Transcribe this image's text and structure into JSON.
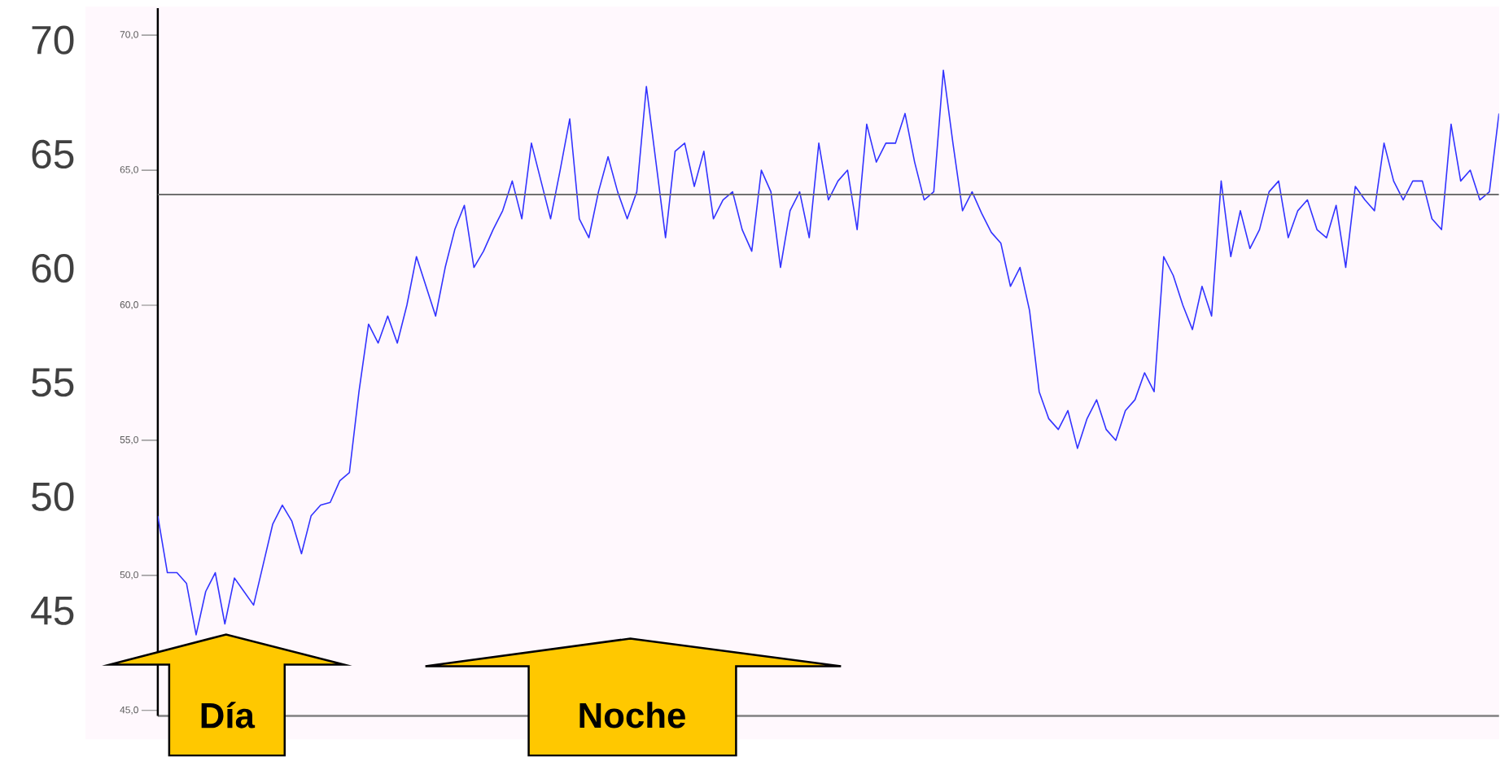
{
  "chart_data": {
    "type": "line",
    "categories": [
      null,
      null,
      null,
      null,
      null,
      null,
      null,
      null,
      null,
      null,
      null,
      null,
      null,
      null,
      null,
      null,
      null,
      null,
      null,
      null,
      null,
      null,
      null,
      null,
      null,
      null,
      null,
      null,
      null,
      null,
      null,
      null,
      null,
      null,
      null,
      null,
      null,
      null,
      null,
      null,
      null,
      null,
      null,
      null,
      null,
      null,
      null,
      null,
      null,
      null,
      null,
      null,
      null,
      null,
      null,
      null,
      null,
      null,
      null,
      null,
      null,
      null,
      null,
      null,
      null,
      null,
      null,
      null,
      null,
      null,
      null,
      null,
      null,
      null,
      null,
      null,
      null,
      null,
      null,
      null,
      null,
      null,
      null,
      null,
      null,
      null,
      null,
      null,
      null,
      null,
      null,
      null,
      null,
      null,
      null,
      null,
      null,
      null,
      null,
      null,
      null,
      null,
      null,
      null,
      null,
      null,
      null,
      null,
      null,
      null,
      null,
      null,
      null,
      null,
      null,
      null,
      null,
      null,
      null,
      null,
      null,
      null,
      null,
      null,
      null,
      null,
      null,
      null,
      null,
      null,
      null,
      null,
      null,
      null,
      null,
      null,
      null,
      null,
      null,
      null,
      null
    ],
    "series": [
      {
        "color": "#3333ff",
        "values": [
          52.2,
          50.1,
          50.1,
          49.7,
          47.8,
          49.4,
          50.1,
          48.2,
          49.9,
          49.4,
          48.9,
          50.4,
          51.9,
          52.6,
          52.0,
          50.8,
          52.2,
          52.6,
          52.7,
          53.5,
          53.8,
          56.8,
          59.3,
          58.6,
          59.6,
          58.6,
          60.0,
          61.8,
          60.7,
          59.6,
          61.4,
          62.8,
          63.7,
          61.4,
          62.0,
          62.8,
          63.5,
          64.6,
          63.2,
          66.0,
          64.6,
          63.2,
          65.0,
          66.9,
          63.2,
          62.5,
          64.2,
          65.5,
          64.2,
          63.2,
          64.2,
          68.1,
          65.3,
          62.5,
          65.7,
          66.0,
          64.4,
          65.7,
          63.2,
          63.9,
          64.2,
          62.8,
          62.0,
          65.0,
          64.2,
          61.4,
          63.5,
          64.2,
          62.5,
          66.0,
          63.9,
          64.6,
          65.0,
          62.8,
          66.7,
          65.3,
          66.0,
          66.0,
          67.1,
          65.3,
          63.9,
          64.2,
          68.7,
          66.0,
          63.5,
          64.2,
          63.4,
          62.7,
          62.3,
          60.7,
          61.4,
          59.8,
          56.8,
          55.8,
          55.4,
          56.1,
          54.7,
          55.8,
          56.5,
          55.4,
          55.0,
          56.1,
          56.5,
          57.5,
          56.8,
          61.8,
          61.1,
          60.0,
          59.1,
          60.7,
          59.6,
          64.6,
          61.8,
          63.5,
          62.1,
          62.8,
          64.2,
          64.6,
          62.5,
          63.5,
          63.9,
          62.8,
          62.5,
          63.7,
          61.4,
          64.4,
          63.9,
          63.5,
          66.0,
          64.6,
          63.9,
          64.6,
          64.6,
          63.2,
          62.8,
          66.7,
          64.6,
          65.0,
          63.9,
          64.2,
          67.1
        ]
      }
    ],
    "ylim": [
      44.8,
      71.0
    ],
    "yticks": [
      {
        "value": 45,
        "label": "45,0"
      },
      {
        "value": 50,
        "label": "50,0"
      },
      {
        "value": 55,
        "label": "55,0"
      },
      {
        "value": 60,
        "label": "60,0"
      },
      {
        "value": 65,
        "label": "65,0"
      },
      {
        "value": 70,
        "label": "70,0"
      }
    ],
    "y2lim": [
      40.4,
      71.4
    ],
    "y2ticks": [
      45,
      50,
      55,
      60,
      65,
      70
    ],
    "ref_lines": [
      {
        "axis": "y",
        "value": 64.1,
        "color": "#707070"
      }
    ],
    "annotations": [
      "Día",
      "Noche"
    ]
  }
}
